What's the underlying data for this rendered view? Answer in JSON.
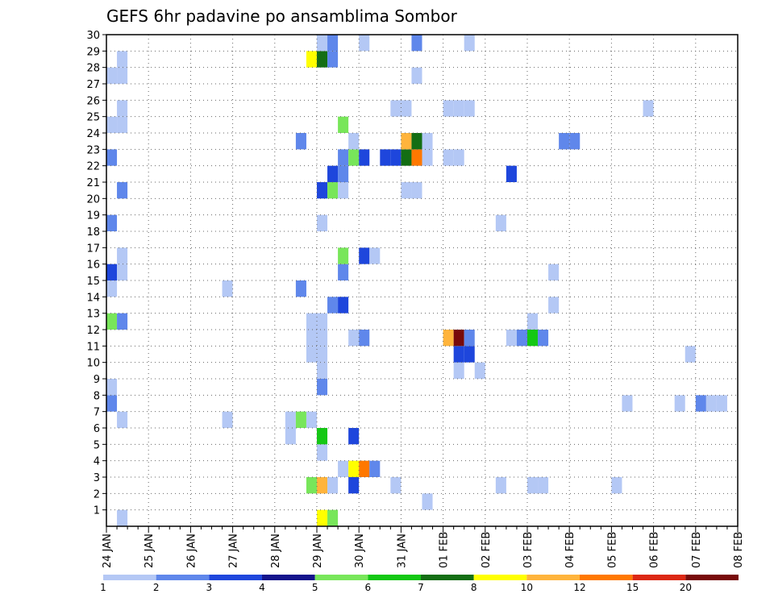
{
  "chart_data": {
    "type": "heatmap",
    "title": "GEFS 6hr padavine po ansamblima Sombor",
    "xlabel": "",
    "ylabel": "",
    "x_tick_labels": [
      "24 JAN",
      "25 JAN",
      "26 JAN",
      "27 JAN",
      "28 JAN",
      "29 JAN",
      "30 JAN",
      "31 JAN",
      "01 FEB",
      "02 FEB",
      "03 FEB",
      "04 FEB",
      "05 FEB",
      "06 FEB",
      "07 FEB",
      "08 FEB"
    ],
    "y_ticks": [
      1,
      2,
      3,
      4,
      5,
      6,
      7,
      8,
      9,
      10,
      11,
      12,
      13,
      14,
      15,
      16,
      17,
      18,
      19,
      20,
      21,
      22,
      23,
      24,
      25,
      26,
      27,
      28,
      29,
      30
    ],
    "ylim": [
      0,
      30
    ],
    "x_steps_per_day": 4,
    "grid": true,
    "colorbar": {
      "levels": [
        "1",
        "2",
        "3",
        "4",
        "5",
        "6",
        "7",
        "8",
        "10",
        "12",
        "15",
        "20"
      ],
      "colors": [
        "#b4c8f5",
        "#5f87eb",
        "#1e46dc",
        "#14148c",
        "#78e65a",
        "#14c814",
        "#146e14",
        "#ffff00",
        "#ffb43c",
        "#ff7800",
        "#dc2814",
        "#780a0a"
      ]
    },
    "cells": [
      {
        "x": 1,
        "y": 0,
        "v": 1
      },
      {
        "x": 20,
        "y": 0,
        "v": 8
      },
      {
        "x": 21,
        "y": 0,
        "v": 5
      },
      {
        "x": 30,
        "y": 1,
        "v": 1
      },
      {
        "x": 19,
        "y": 2,
        "v": 5
      },
      {
        "x": 20,
        "y": 2,
        "v": 10
      },
      {
        "x": 21,
        "y": 2,
        "v": 1
      },
      {
        "x": 23,
        "y": 2,
        "v": 3
      },
      {
        "x": 27,
        "y": 2,
        "v": 1
      },
      {
        "x": 37,
        "y": 2,
        "v": 1
      },
      {
        "x": 40,
        "y": 2,
        "v": 1
      },
      {
        "x": 41,
        "y": 2,
        "v": 1
      },
      {
        "x": 48,
        "y": 2,
        "v": 1
      },
      {
        "x": 22,
        "y": 3,
        "v": 1
      },
      {
        "x": 23,
        "y": 3,
        "v": 8
      },
      {
        "x": 24,
        "y": 3,
        "v": 12
      },
      {
        "x": 25,
        "y": 3,
        "v": 2
      },
      {
        "x": 20,
        "y": 4,
        "v": 1
      },
      {
        "x": 17,
        "y": 5,
        "v": 1
      },
      {
        "x": 20,
        "y": 5,
        "v": 6
      },
      {
        "x": 23,
        "y": 5,
        "v": 3
      },
      {
        "x": 11,
        "y": 6,
        "v": 1
      },
      {
        "x": 17,
        "y": 6,
        "v": 1
      },
      {
        "x": 18,
        "y": 6,
        "v": 5
      },
      {
        "x": 19,
        "y": 6,
        "v": 1
      },
      {
        "x": 1,
        "y": 6,
        "v": 1
      },
      {
        "x": 0,
        "y": 7,
        "v": 2
      },
      {
        "x": 49,
        "y": 7,
        "v": 1
      },
      {
        "x": 54,
        "y": 7,
        "v": 1
      },
      {
        "x": 56,
        "y": 7,
        "v": 2
      },
      {
        "x": 57,
        "y": 7,
        "v": 1
      },
      {
        "x": 58,
        "y": 7,
        "v": 1
      },
      {
        "x": 0,
        "y": 8,
        "v": 1
      },
      {
        "x": 20,
        "y": 8,
        "v": 2
      },
      {
        "x": 20,
        "y": 9,
        "v": 1
      },
      {
        "x": 33,
        "y": 9,
        "v": 1
      },
      {
        "x": 35,
        "y": 9,
        "v": 1
      },
      {
        "x": 19,
        "y": 10,
        "v": 1
      },
      {
        "x": 20,
        "y": 10,
        "v": 1
      },
      {
        "x": 33,
        "y": 10,
        "v": 3
      },
      {
        "x": 34,
        "y": 10,
        "v": 3
      },
      {
        "x": 55,
        "y": 10,
        "v": 1
      },
      {
        "x": 19,
        "y": 11,
        "v": 1
      },
      {
        "x": 20,
        "y": 11,
        "v": 1
      },
      {
        "x": 23,
        "y": 11,
        "v": 1
      },
      {
        "x": 24,
        "y": 11,
        "v": 2
      },
      {
        "x": 32,
        "y": 11,
        "v": 10
      },
      {
        "x": 33,
        "y": 11,
        "v": 20
      },
      {
        "x": 34,
        "y": 11,
        "v": 2
      },
      {
        "x": 38,
        "y": 11,
        "v": 1
      },
      {
        "x": 39,
        "y": 11,
        "v": 2
      },
      {
        "x": 40,
        "y": 11,
        "v": 6
      },
      {
        "x": 41,
        "y": 11,
        "v": 2
      },
      {
        "x": 0,
        "y": 12,
        "v": 5
      },
      {
        "x": 1,
        "y": 12,
        "v": 2
      },
      {
        "x": 19,
        "y": 12,
        "v": 1
      },
      {
        "x": 20,
        "y": 12,
        "v": 1
      },
      {
        "x": 40,
        "y": 12,
        "v": 1
      },
      {
        "x": 21,
        "y": 13,
        "v": 2
      },
      {
        "x": 22,
        "y": 13,
        "v": 3
      },
      {
        "x": 42,
        "y": 13,
        "v": 1
      },
      {
        "x": 0,
        "y": 14,
        "v": 1
      },
      {
        "x": 11,
        "y": 14,
        "v": 1
      },
      {
        "x": 18,
        "y": 14,
        "v": 2
      },
      {
        "x": 0,
        "y": 15,
        "v": 3
      },
      {
        "x": 1,
        "y": 15,
        "v": 1
      },
      {
        "x": 22,
        "y": 15,
        "v": 2
      },
      {
        "x": 42,
        "y": 15,
        "v": 1
      },
      {
        "x": 1,
        "y": 16,
        "v": 1
      },
      {
        "x": 22,
        "y": 16,
        "v": 5
      },
      {
        "x": 24,
        "y": 16,
        "v": 3
      },
      {
        "x": 25,
        "y": 16,
        "v": 1
      },
      {
        "x": 0,
        "y": 18,
        "v": 2
      },
      {
        "x": 20,
        "y": 18,
        "v": 1
      },
      {
        "x": 37,
        "y": 18,
        "v": 1
      },
      {
        "x": 1,
        "y": 20,
        "v": 2
      },
      {
        "x": 20,
        "y": 20,
        "v": 3
      },
      {
        "x": 21,
        "y": 20,
        "v": 5
      },
      {
        "x": 22,
        "y": 20,
        "v": 1
      },
      {
        "x": 28,
        "y": 20,
        "v": 1
      },
      {
        "x": 29,
        "y": 20,
        "v": 1
      },
      {
        "x": 21,
        "y": 21,
        "v": 3
      },
      {
        "x": 22,
        "y": 21,
        "v": 2
      },
      {
        "x": 38,
        "y": 21,
        "v": 3
      },
      {
        "x": 0,
        "y": 22,
        "v": 2
      },
      {
        "x": 22,
        "y": 22,
        "v": 2
      },
      {
        "x": 23,
        "y": 22,
        "v": 5
      },
      {
        "x": 24,
        "y": 22,
        "v": 3
      },
      {
        "x": 26,
        "y": 22,
        "v": 3
      },
      {
        "x": 27,
        "y": 22,
        "v": 3
      },
      {
        "x": 28,
        "y": 22,
        "v": 7
      },
      {
        "x": 29,
        "y": 22,
        "v": 12
      },
      {
        "x": 30,
        "y": 22,
        "v": 1
      },
      {
        "x": 32,
        "y": 22,
        "v": 1
      },
      {
        "x": 33,
        "y": 22,
        "v": 1
      },
      {
        "x": 18,
        "y": 23,
        "v": 2
      },
      {
        "x": 23,
        "y": 23,
        "v": 1
      },
      {
        "x": 28,
        "y": 23,
        "v": 10
      },
      {
        "x": 29,
        "y": 23,
        "v": 7
      },
      {
        "x": 30,
        "y": 23,
        "v": 1
      },
      {
        "x": 43,
        "y": 23,
        "v": 2
      },
      {
        "x": 44,
        "y": 23,
        "v": 2
      },
      {
        "x": 0,
        "y": 24,
        "v": 1
      },
      {
        "x": 1,
        "y": 24,
        "v": 1
      },
      {
        "x": 22,
        "y": 24,
        "v": 5
      },
      {
        "x": 1,
        "y": 25,
        "v": 1
      },
      {
        "x": 27,
        "y": 25,
        "v": 1
      },
      {
        "x": 28,
        "y": 25,
        "v": 1
      },
      {
        "x": 32,
        "y": 25,
        "v": 1
      },
      {
        "x": 33,
        "y": 25,
        "v": 1
      },
      {
        "x": 34,
        "y": 25,
        "v": 1
      },
      {
        "x": 51,
        "y": 25,
        "v": 1
      },
      {
        "x": 0,
        "y": 27,
        "v": 1
      },
      {
        "x": 1,
        "y": 27,
        "v": 1
      },
      {
        "x": 29,
        "y": 27,
        "v": 1
      },
      {
        "x": 1,
        "y": 28,
        "v": 1
      },
      {
        "x": 19,
        "y": 28,
        "v": 8
      },
      {
        "x": 20,
        "y": 28,
        "v": 7
      },
      {
        "x": 21,
        "y": 28,
        "v": 2
      },
      {
        "x": 20,
        "y": 29,
        "v": 1
      },
      {
        "x": 21,
        "y": 29,
        "v": 2
      },
      {
        "x": 24,
        "y": 29,
        "v": 1
      },
      {
        "x": 29,
        "y": 29,
        "v": 2
      },
      {
        "x": 34,
        "y": 29,
        "v": 1
      }
    ]
  }
}
